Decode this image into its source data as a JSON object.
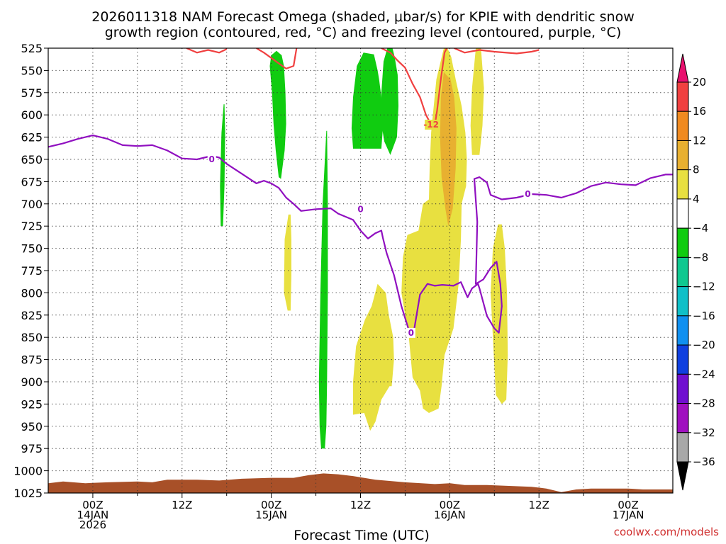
{
  "chart_data": {
    "type": "cross-section",
    "title_line1": "2026011318 NAM Forecast Omega (shaded, μbar/s) for KPIE with dendritic snow",
    "title_line2": "growth region (contoured, red, °C) and freezing level (contoured, purple, °C)",
    "xlabel": "Forecast Time (UTC)",
    "credit": "coolwx.com/models",
    "x_range_hours": [
      -6,
      78
    ],
    "y_range_hPa": [
      525,
      1025
    ],
    "y_ticks": [
      525,
      550,
      575,
      600,
      625,
      650,
      675,
      700,
      725,
      750,
      775,
      800,
      825,
      850,
      875,
      900,
      925,
      950,
      975,
      1000,
      1025
    ],
    "x_ticks": [
      {
        "h": 0,
        "lines": [
          "00Z",
          "14JAN",
          "2026"
        ]
      },
      {
        "h": 12,
        "lines": [
          "12Z"
        ]
      },
      {
        "h": 24,
        "lines": [
          "00Z",
          "15JAN"
        ]
      },
      {
        "h": 36,
        "lines": [
          "12Z"
        ]
      },
      {
        "h": 48,
        "lines": [
          "00Z",
          "16JAN"
        ]
      },
      {
        "h": 60,
        "lines": [
          "12Z"
        ]
      },
      {
        "h": 72,
        "lines": [
          "00Z",
          "17JAN"
        ]
      }
    ],
    "grid": true,
    "colorbar": {
      "labels": [
        "20",
        "16",
        "12",
        "8",
        "4",
        "−4",
        "−8",
        "−12",
        "−16",
        "−20",
        "−24",
        "−28",
        "−32",
        "−36"
      ],
      "colors": [
        "#e8106e",
        "#f04040",
        "#f08a20",
        "#e8b030",
        "#e8e040",
        "#ffffff",
        "#10cc10",
        "#10c890",
        "#10c0c8",
        "#1090f0",
        "#1040e0",
        "#7010d0",
        "#a010c0",
        "#a8a8a8",
        "#000000"
      ]
    },
    "freezing_level": {
      "name": "0",
      "color": "#9010c0",
      "points": [
        [
          -6,
          636
        ],
        [
          -4,
          632
        ],
        [
          -2,
          627
        ],
        [
          0,
          623
        ],
        [
          2,
          627
        ],
        [
          4,
          634
        ],
        [
          6,
          635
        ],
        [
          8,
          634
        ],
        [
          10,
          640
        ],
        [
          12,
          649
        ],
        [
          14,
          650
        ],
        [
          16,
          646
        ],
        [
          17,
          648
        ],
        [
          18,
          655
        ],
        [
          20,
          666
        ],
        [
          22,
          677
        ],
        [
          23,
          674
        ],
        [
          24,
          677
        ],
        [
          25,
          682
        ],
        [
          26,
          693
        ],
        [
          27,
          700
        ],
        [
          28,
          708
        ],
        [
          30,
          706
        ],
        [
          32,
          705
        ],
        [
          33,
          711
        ],
        [
          35,
          718
        ],
        [
          36,
          730
        ],
        [
          37,
          739
        ],
        [
          38,
          733
        ],
        [
          38.8,
          730
        ],
        [
          39,
          738
        ],
        [
          39.5,
          755
        ],
        [
          40.5,
          780
        ],
        [
          41.5,
          815
        ],
        [
          42.5,
          842
        ],
        [
          43.2,
          842
        ],
        [
          44,
          802
        ],
        [
          45,
          790
        ],
        [
          46,
          792
        ],
        [
          47,
          791
        ],
        [
          48.5,
          792
        ],
        [
          49.5,
          788
        ],
        [
          50.4,
          805
        ],
        [
          51,
          795
        ],
        [
          51.8,
          790
        ],
        [
          52,
          795
        ],
        [
          53,
          826
        ],
        [
          54,
          840
        ],
        [
          54.6,
          845
        ],
        [
          55,
          815
        ],
        [
          54.8,
          790
        ],
        [
          54.3,
          765
        ],
        [
          53.5,
          772
        ],
        [
          52.5,
          785
        ],
        [
          51.5,
          790
        ],
        [
          51.7,
          720
        ],
        [
          51.3,
          672
        ],
        [
          52,
          670
        ],
        [
          53,
          676
        ],
        [
          53.5,
          690
        ],
        [
          55,
          695
        ],
        [
          57,
          693
        ],
        [
          59,
          689
        ],
        [
          61,
          690
        ],
        [
          63,
          693
        ],
        [
          65,
          688
        ],
        [
          67,
          680
        ],
        [
          69,
          676
        ],
        [
          71,
          678
        ],
        [
          73,
          679
        ],
        [
          75,
          671
        ],
        [
          77,
          667
        ],
        [
          78,
          667
        ]
      ],
      "labels": [
        {
          "h": 16,
          "p": 650
        },
        {
          "h": 36,
          "p": 706
        },
        {
          "h": 42.8,
          "p": 845
        },
        {
          "h": 58.5,
          "p": 689
        }
      ]
    },
    "dgz_contour": {
      "name": "-12",
      "color": "#f04040",
      "segments": [
        [
          [
            12.6,
            525
          ],
          [
            14,
            530
          ],
          [
            15.5,
            527
          ],
          [
            17,
            530
          ],
          [
            18,
            526
          ]
        ],
        [
          [
            22,
            525
          ],
          [
            23,
            530
          ],
          [
            24,
            536
          ],
          [
            25,
            542
          ],
          [
            26,
            548
          ],
          [
            27,
            545
          ],
          [
            27.4,
            525
          ]
        ],
        [
          [
            38.8,
            525
          ],
          [
            40,
            530
          ],
          [
            41,
            539
          ],
          [
            42,
            547
          ],
          [
            43,
            565
          ],
          [
            44,
            580
          ],
          [
            44.8,
            600
          ],
          [
            45.5,
            611
          ],
          [
            46,
            611
          ],
          [
            46.3,
            595
          ],
          [
            46.8,
            560
          ],
          [
            47.3,
            530
          ],
          [
            47.6,
            525
          ]
        ],
        [
          [
            48.6,
            525
          ],
          [
            50,
            530
          ],
          [
            52,
            527
          ],
          [
            54,
            529
          ],
          [
            57,
            531
          ],
          [
            59,
            529
          ],
          [
            60,
            527
          ]
        ]
      ],
      "labels": [
        {
          "h": 45.5,
          "p": 611
        }
      ]
    },
    "omega_regions": [
      {
        "color": "#10cc10",
        "points": [
          [
            24.7,
            528
          ],
          [
            24,
            533
          ],
          [
            23.8,
            545
          ],
          [
            24.1,
            575
          ],
          [
            24.3,
            610
          ],
          [
            24.6,
            640
          ],
          [
            25,
            670
          ],
          [
            25.3,
            672
          ],
          [
            25.8,
            640
          ],
          [
            26,
            610
          ],
          [
            25.9,
            575
          ],
          [
            25.7,
            545
          ],
          [
            25.4,
            533
          ]
        ]
      },
      {
        "color": "#10cc10",
        "points": [
          [
            36.4,
            530
          ],
          [
            35.5,
            545
          ],
          [
            35,
            580
          ],
          [
            34.8,
            615
          ],
          [
            35,
            638
          ],
          [
            38.8,
            638
          ],
          [
            39,
            615
          ],
          [
            38.8,
            580
          ],
          [
            38.5,
            560
          ],
          [
            38.3,
            550
          ],
          [
            37.8,
            532
          ]
        ]
      },
      {
        "color": "#10cc10",
        "points": [
          [
            39.6,
            525
          ],
          [
            39.1,
            540
          ],
          [
            38.8,
            575
          ],
          [
            38.8,
            610
          ],
          [
            39.2,
            630
          ],
          [
            40,
            645
          ],
          [
            40.9,
            625
          ],
          [
            41.1,
            590
          ],
          [
            41.0,
            555
          ],
          [
            40.6,
            535
          ],
          [
            40.3,
            525
          ]
        ]
      },
      {
        "color": "#10cc10",
        "points": [
          [
            17.6,
            588
          ],
          [
            17.3,
            620
          ],
          [
            17.1,
            680
          ],
          [
            17.2,
            725
          ],
          [
            17.5,
            725
          ],
          [
            17.7,
            680
          ],
          [
            17.8,
            620
          ],
          [
            17.7,
            588
          ]
        ]
      },
      {
        "color": "#10cc10",
        "points": [
          [
            31.4,
            618
          ],
          [
            30.9,
            700
          ],
          [
            30.6,
            800
          ],
          [
            30.4,
            900
          ],
          [
            30.5,
            950
          ],
          [
            30.7,
            975
          ],
          [
            31.2,
            975
          ],
          [
            31.4,
            950
          ],
          [
            31.5,
            900
          ],
          [
            31.6,
            800
          ],
          [
            31.6,
            700
          ],
          [
            31.5,
            618
          ]
        ]
      },
      {
        "color": "#e8e040",
        "points": [
          [
            47.2,
            525
          ],
          [
            46.2,
            560
          ],
          [
            45.5,
            620
          ],
          [
            45.3,
            660
          ],
          [
            45.2,
            695
          ],
          [
            44.4,
            700
          ],
          [
            43.8,
            730
          ],
          [
            42.3,
            735
          ],
          [
            41.7,
            760
          ],
          [
            41.5,
            800
          ],
          [
            42.5,
            850
          ],
          [
            43,
            895
          ],
          [
            44,
            910
          ],
          [
            44.4,
            930
          ],
          [
            45.2,
            935
          ],
          [
            46.5,
            930
          ],
          [
            46.9,
            905
          ],
          [
            47.3,
            870
          ],
          [
            48.5,
            840
          ],
          [
            49.2,
            790
          ],
          [
            49.5,
            740
          ],
          [
            49.6,
            700
          ],
          [
            50.2,
            680
          ],
          [
            50.3,
            650
          ],
          [
            50.1,
            620
          ],
          [
            49.6,
            590
          ],
          [
            48.8,
            560
          ],
          [
            48.2,
            535
          ],
          [
            47.7,
            525
          ]
        ]
      },
      {
        "color": "#e8b030",
        "points": [
          [
            47.2,
            552
          ],
          [
            46.8,
            580
          ],
          [
            46.7,
            625
          ],
          [
            46.9,
            670
          ],
          [
            47.4,
            705
          ],
          [
            47.8,
            725
          ],
          [
            48.4,
            705
          ],
          [
            48.8,
            660
          ],
          [
            48.9,
            615
          ],
          [
            48.6,
            580
          ],
          [
            48.1,
            560
          ]
        ]
      },
      {
        "color": "#e8e040",
        "points": [
          [
            38.3,
            790
          ],
          [
            37.5,
            815
          ],
          [
            36.6,
            830
          ],
          [
            35.4,
            860
          ],
          [
            35,
            900
          ],
          [
            35,
            937
          ],
          [
            36.5,
            935
          ],
          [
            37.3,
            955
          ],
          [
            38,
            945
          ],
          [
            38.8,
            920
          ],
          [
            39.9,
            905
          ],
          [
            40.2,
            905
          ],
          [
            40.5,
            875
          ],
          [
            40.4,
            850
          ],
          [
            39.8,
            825
          ],
          [
            39.4,
            800
          ]
        ]
      },
      {
        "color": "#e8e040",
        "points": [
          [
            51.5,
            525
          ],
          [
            51,
            570
          ],
          [
            50.8,
            612
          ],
          [
            51,
            645
          ],
          [
            52,
            645
          ],
          [
            52.4,
            612
          ],
          [
            52.6,
            570
          ],
          [
            52.2,
            525
          ]
        ]
      },
      {
        "color": "#e8e040",
        "points": [
          [
            54.5,
            723
          ],
          [
            53.8,
            750
          ],
          [
            53.5,
            800
          ],
          [
            53.8,
            850
          ],
          [
            54.2,
            915
          ],
          [
            55,
            925
          ],
          [
            55.6,
            920
          ],
          [
            55.8,
            870
          ],
          [
            55.7,
            800
          ],
          [
            55.4,
            750
          ],
          [
            55,
            723
          ]
        ]
      },
      {
        "color": "#e8e040",
        "points": [
          [
            26.3,
            712
          ],
          [
            25.8,
            740
          ],
          [
            25.7,
            800
          ],
          [
            26.2,
            820
          ],
          [
            26.6,
            820
          ],
          [
            26.7,
            780
          ],
          [
            26.7,
            740
          ],
          [
            26.6,
            712
          ]
        ]
      }
    ],
    "terrain": {
      "color": "#a85028",
      "points": [
        [
          -6,
          1014
        ],
        [
          -4,
          1012
        ],
        [
          -1,
          1014
        ],
        [
          2,
          1013
        ],
        [
          6,
          1012
        ],
        [
          8,
          1013
        ],
        [
          10,
          1010
        ],
        [
          14,
          1010
        ],
        [
          17,
          1011
        ],
        [
          20,
          1009
        ],
        [
          24,
          1008
        ],
        [
          27,
          1008
        ],
        [
          29,
          1005
        ],
        [
          31,
          1003
        ],
        [
          33,
          1004
        ],
        [
          35,
          1006
        ],
        [
          38,
          1010
        ],
        [
          42,
          1013
        ],
        [
          46,
          1015
        ],
        [
          48,
          1014
        ],
        [
          50,
          1016
        ],
        [
          53,
          1016
        ],
        [
          56,
          1017
        ],
        [
          59,
          1018
        ],
        [
          61,
          1020
        ],
        [
          63,
          1024
        ],
        [
          65,
          1021
        ],
        [
          67,
          1020
        ],
        [
          70,
          1020
        ],
        [
          72,
          1020
        ],
        [
          74,
          1021
        ],
        [
          76,
          1021
        ],
        [
          78,
          1021
        ]
      ]
    }
  }
}
